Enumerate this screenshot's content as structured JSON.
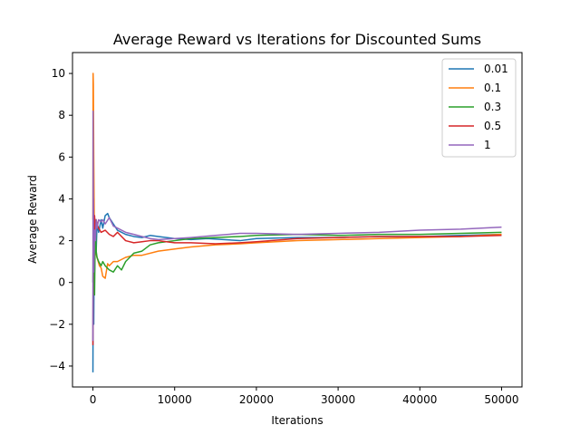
{
  "chart_data": {
    "type": "line",
    "title": "Average Reward vs Iterations for Discounted Sums",
    "xlabel": "Iterations",
    "ylabel": "Average Reward",
    "xlim": [
      -2500,
      52500
    ],
    "ylim": [
      -5,
      11
    ],
    "xticks": [
      0,
      10000,
      20000,
      30000,
      40000,
      50000
    ],
    "xtick_labels": [
      "0",
      "10000",
      "20000",
      "30000",
      "40000",
      "50000"
    ],
    "yticks": [
      -4,
      -2,
      0,
      2,
      4,
      6,
      8,
      10
    ],
    "ytick_labels": [
      "−4",
      "−2",
      "0",
      "2",
      "4",
      "6",
      "8",
      "10"
    ],
    "grid": false,
    "legend_position": "top-right",
    "series": [
      {
        "name": "0.01",
        "color": "#1f77b4",
        "x": [
          0,
          50,
          100,
          150,
          200,
          300,
          400,
          500,
          700,
          1000,
          1200,
          1500,
          1800,
          2000,
          2500,
          3000,
          4000,
          5000,
          6000,
          7000,
          8000,
          9000,
          10000,
          12000,
          14000,
          16000,
          18000,
          20000,
          25000,
          30000,
          35000,
          40000,
          45000,
          50000
        ],
        "y": [
          -4.3,
          4.5,
          -2.0,
          1.5,
          0.5,
          2.2,
          1.5,
          2.8,
          2.4,
          3.0,
          2.6,
          3.2,
          3.3,
          3.1,
          2.8,
          2.5,
          2.3,
          2.2,
          2.15,
          2.25,
          2.2,
          2.15,
          2.1,
          2.05,
          2.1,
          2.05,
          2.0,
          2.1,
          2.15,
          2.15,
          2.2,
          2.2,
          2.25,
          2.3
        ]
      },
      {
        "name": "0.1",
        "color": "#ff7f0e",
        "x": [
          0,
          20,
          50,
          100,
          150,
          200,
          300,
          500,
          800,
          1000,
          1200,
          1500,
          1800,
          2000,
          2500,
          3000,
          4000,
          5000,
          6000,
          8000,
          10000,
          12000,
          15000,
          18000,
          20000,
          25000,
          30000,
          35000,
          40000,
          45000,
          50000
        ],
        "y": [
          3.0,
          10.0,
          9.5,
          6.0,
          3.5,
          2.0,
          1.5,
          1.2,
          0.8,
          0.7,
          0.3,
          0.2,
          0.9,
          0.8,
          1.0,
          1.0,
          1.2,
          1.3,
          1.3,
          1.5,
          1.6,
          1.7,
          1.8,
          1.85,
          1.9,
          2.0,
          2.05,
          2.1,
          2.15,
          2.2,
          2.3
        ]
      },
      {
        "name": "0.3",
        "color": "#2ca02c",
        "x": [
          0,
          50,
          100,
          150,
          200,
          300,
          400,
          500,
          700,
          1000,
          1200,
          1500,
          2000,
          2500,
          3000,
          3500,
          4000,
          4500,
          5000,
          6000,
          7000,
          8000,
          10000,
          12000,
          15000,
          18000,
          20000,
          25000,
          30000,
          35000,
          40000,
          45000,
          50000
        ],
        "y": [
          0.0,
          3.5,
          -0.5,
          2.5,
          -0.6,
          3.0,
          1.5,
          1.2,
          1.0,
          0.8,
          1.0,
          0.8,
          0.6,
          0.5,
          0.8,
          0.6,
          1.0,
          1.2,
          1.4,
          1.5,
          1.8,
          1.9,
          2.0,
          2.1,
          2.15,
          2.2,
          2.25,
          2.3,
          2.25,
          2.3,
          2.3,
          2.35,
          2.4
        ]
      },
      {
        "name": "0.5",
        "color": "#d62728",
        "x": [
          0,
          50,
          100,
          150,
          200,
          300,
          400,
          500,
          700,
          1000,
          1500,
          2000,
          2500,
          3000,
          4000,
          5000,
          6000,
          7000,
          8000,
          9000,
          10000,
          12000,
          15000,
          18000,
          20000,
          25000,
          30000,
          35000,
          40000,
          45000,
          50000
        ],
        "y": [
          -3.0,
          4.0,
          1.0,
          2.8,
          3.2,
          2.5,
          3.0,
          2.8,
          2.6,
          2.4,
          2.5,
          2.3,
          2.2,
          2.4,
          2.0,
          1.9,
          1.95,
          2.0,
          2.0,
          1.95,
          1.9,
          1.9,
          1.85,
          1.9,
          1.95,
          2.1,
          2.15,
          2.2,
          2.2,
          2.2,
          2.25
        ]
      },
      {
        "name": "1",
        "color": "#9467bd",
        "x": [
          0,
          20,
          50,
          100,
          150,
          200,
          300,
          400,
          500,
          700,
          1000,
          1200,
          1500,
          2000,
          2500,
          3000,
          4000,
          5000,
          6000,
          7000,
          8000,
          10000,
          12000,
          15000,
          18000,
          20000,
          25000,
          30000,
          35000,
          40000,
          45000,
          50000
        ],
        "y": [
          -2.8,
          8.2,
          4.0,
          0.5,
          1.5,
          2.5,
          2.0,
          3.0,
          2.6,
          3.0,
          2.9,
          3.0,
          2.8,
          3.1,
          2.7,
          2.6,
          2.4,
          2.3,
          2.2,
          2.1,
          2.05,
          2.1,
          2.15,
          2.25,
          2.35,
          2.35,
          2.3,
          2.35,
          2.4,
          2.5,
          2.55,
          2.65
        ]
      }
    ]
  }
}
